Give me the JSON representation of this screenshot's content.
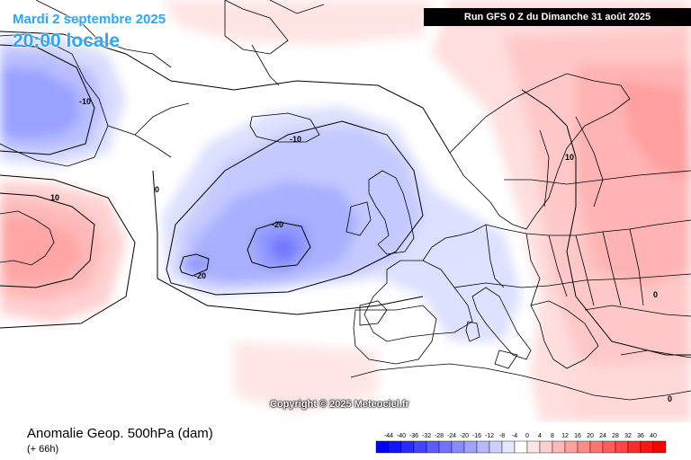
{
  "header": {
    "date": "Mardi 2 septembre 2025",
    "time": "20:00 locale",
    "run": "Run GFS 0 Z du Dimanche 31 août 2025"
  },
  "footer": {
    "title": "Anomalie Geop. 500hPa (dam)",
    "lead": "(+ 66h)",
    "copyright": "Copyright © 2025 Meteociel.fr"
  },
  "legend": {
    "ticks": [
      "-44",
      "-40",
      "-36",
      "-32",
      "-28",
      "-24",
      "-20",
      "-16",
      "-12",
      "-8",
      "-4",
      "0",
      "4",
      "8",
      "12",
      "16",
      "20",
      "24",
      "28",
      "32",
      "36",
      "40"
    ],
    "colors": [
      "#0000ff",
      "#1414ff",
      "#2b2bff",
      "#4545ff",
      "#5c5cff",
      "#7373ff",
      "#8a8aff",
      "#a1a1ff",
      "#b8b8ff",
      "#cfcfff",
      "#e6e6ff",
      "#ffffff",
      "#ffe6e6",
      "#ffcfcf",
      "#ffb8b8",
      "#ffa1a1",
      "#ff8a8a",
      "#ff7373",
      "#ff5c5c",
      "#ff4545",
      "#ff2b2b",
      "#ff1414",
      "#ff0000"
    ]
  },
  "contour_labels": [
    {
      "text": "-10"
    },
    {
      "text": "-10"
    },
    {
      "text": "-20"
    },
    {
      "text": "-20"
    },
    {
      "text": "10"
    },
    {
      "text": "10"
    },
    {
      "text": "0"
    },
    {
      "text": "0"
    },
    {
      "text": "0"
    }
  ]
}
